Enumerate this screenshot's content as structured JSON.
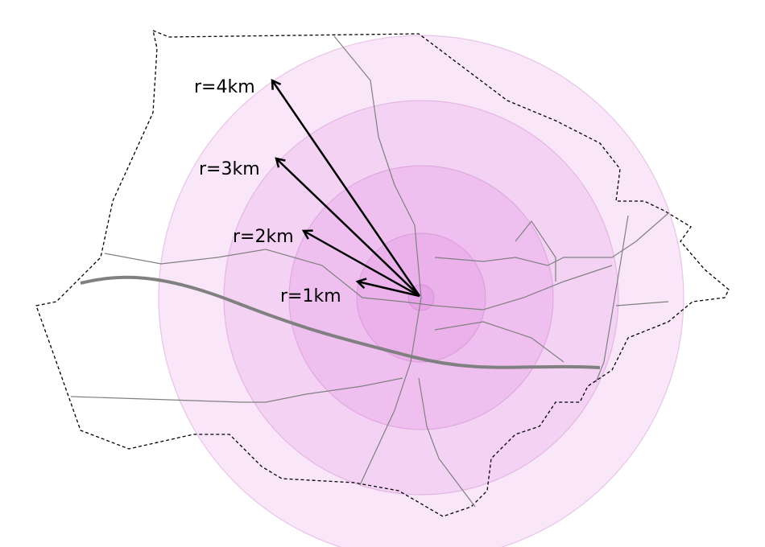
{
  "rings": [
    {
      "label": "r=1km"
    },
    {
      "label": "r=2km"
    },
    {
      "label": "r=3km"
    },
    {
      "label": "r=4km"
    }
  ]
}
